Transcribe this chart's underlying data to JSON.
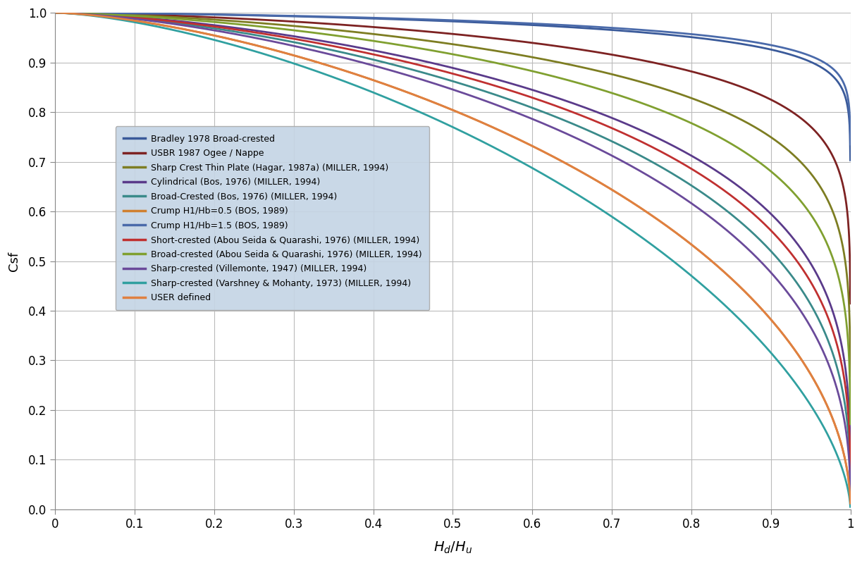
{
  "title": "",
  "xlabel": "H_d/H_u",
  "ylabel": "Csf",
  "xlim": [
    0,
    1.0
  ],
  "ylim": [
    0,
    1.0
  ],
  "xticks": [
    0,
    0.1,
    0.2,
    0.3,
    0.4,
    0.5,
    0.6,
    0.7,
    0.8,
    0.9,
    1.0
  ],
  "yticks": [
    0.0,
    0.1,
    0.2,
    0.3,
    0.4,
    0.5,
    0.6,
    0.7,
    0.8,
    0.9,
    1.0
  ],
  "curves": [
    {
      "label": "Bradley 1978 Broad-crested",
      "color": "#3a5a9a",
      "n1": 1.5,
      "n2": 0.18
    },
    {
      "label": "USBR 1987 Ogee / Nappe",
      "color": "#7d2222",
      "n1": 1.5,
      "n2": 0.255
    },
    {
      "label": "Sharp Crest Thin Plate (Hagar, 1987a) (MILLER, 1994)",
      "color": "#7d7d22",
      "n1": 1.5,
      "n2": 0.32
    },
    {
      "label": "Cylindrical (Bos, 1976) (MILLER, 1994)",
      "color": "#5a3a8a",
      "n1": 1.5,
      "n2": 0.42
    },
    {
      "label": "Broad-Crested (Bos, 1976) (MILLER, 1994)",
      "color": "#3a8a8a",
      "n1": 1.5,
      "n2": 0.54
    },
    {
      "label": "Crump H1/Hb=0.5 (BOS, 1989)",
      "color": "#d08030",
      "n1": 1.5,
      "n2": 0.68
    },
    {
      "label": "Crump H1/Hb=1.5 (BOS, 1989)",
      "color": "#4a6aaa",
      "n1": 1.5,
      "n2": 0.135
    },
    {
      "label": "Short-crested (Abou Seida & Quarashi, 1976) (MILLER, 1994)",
      "color": "#c03030",
      "n1": 1.5,
      "n2": 0.5
    },
    {
      "label": "Broad-crested (Abou Seida & Quarashi, 1976) (MILLER, 1994)",
      "color": "#80a030",
      "n1": 1.5,
      "n2": 0.36
    },
    {
      "label": "Sharp-crested (Villemonte, 1947) (MILLER, 1994)",
      "color": "#6a4a9a",
      "n1": 1.5,
      "n2": 0.385
    },
    {
      "label": "Sharp-crested (Varshney & Mohanty, 1973) (MILLER, 1994)",
      "color": "#30a0a0",
      "n1": 1.5,
      "n2": 0.72
    },
    {
      "label": "USER defined",
      "color": "#e08040",
      "n1": 1.5,
      "n2": 0.72
    }
  ],
  "background_color": "#ffffff",
  "legend_bg_color": "#c5d5e5",
  "grid_color": "#bbbbbb",
  "linewidth": 2.0
}
